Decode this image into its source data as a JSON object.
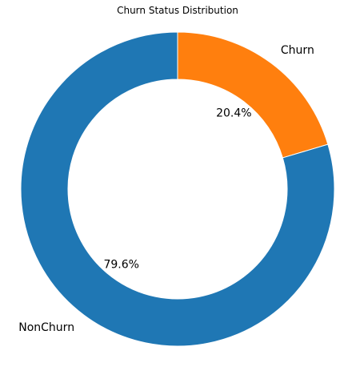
{
  "chart_data": {
    "type": "pie",
    "title": "Churn Status Distribution",
    "donut": true,
    "start_angle_deg": 90,
    "direction": "clockwise",
    "slices": [
      {
        "label": "Churn",
        "value": 20.4,
        "pct_label": "20.4%",
        "color": "#ff7f0e"
      },
      {
        "label": "NonChurn",
        "value": 79.6,
        "pct_label": "79.6%",
        "color": "#1f77b4"
      }
    ]
  }
}
